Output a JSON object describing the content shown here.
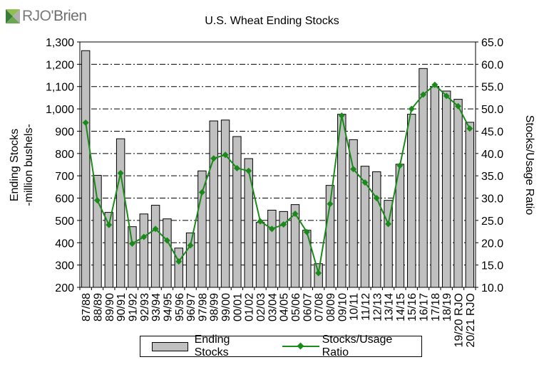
{
  "brand": {
    "logo_text_left": "RJO",
    "logo_text_right": "Brien",
    "logo_colors": [
      "#3a7a3a",
      "#8fbf4f",
      "#b0b0b0"
    ]
  },
  "chart_data": {
    "type": "bar+line",
    "title": "U.S. Wheat Ending Stocks",
    "ylabel_left_line1": "Ending Stocks",
    "ylabel_left_line2": "-million bushels-",
    "ylabel_right": "Stocks/Usage Ratio",
    "ylim_left": [
      200,
      1300
    ],
    "ylim_right": [
      10.0,
      65.0
    ],
    "yticks_left": [
      "200",
      "300",
      "400",
      "500",
      "600",
      "700",
      "800",
      "900",
      "1,000",
      "1,100",
      "1,200",
      "1,300"
    ],
    "yticks_right": [
      "10.0",
      "15.0",
      "20.0",
      "25.0",
      "30.0",
      "35.0",
      "40.0",
      "45.0",
      "50.0",
      "55.0",
      "60.0",
      "65.0"
    ],
    "gridlines": "horizontal dash-dot",
    "categories": [
      "87/88",
      "88/89",
      "89/90",
      "90/91",
      "91/92",
      "92/93",
      "93/94",
      "94/95",
      "95/96",
      "96/97",
      "97/98",
      "98/99",
      "99/00",
      "00/01",
      "01/02",
      "02/03",
      "03/04",
      "04/05",
      "05/06",
      "06/07",
      "07/08",
      "08/09",
      "09/10",
      "10/11",
      "11/12",
      "12/13",
      "13/14",
      "14/15",
      "15/16",
      "16/17",
      "17/18",
      "18/19",
      "19/20 RJO",
      "20/21 RJO"
    ],
    "series": [
      {
        "name": "Ending Stocks",
        "kind": "bar",
        "axis": "left",
        "color": "#c0c0c0",
        "values": [
          1261,
          702,
          536,
          866,
          472,
          529,
          568,
          507,
          376,
          444,
          722,
          946,
          950,
          876,
          777,
          491,
          546,
          540,
          571,
          456,
          306,
          657,
          976,
          862,
          743,
          718,
          590,
          752,
          976,
          1181,
          1100,
          1080,
          1043,
          940
        ]
      },
      {
        "name": "Stocks/Usage Ratio",
        "kind": "line",
        "axis": "right",
        "color": "#1a8a1a",
        "values": [
          46.9,
          29.5,
          24.0,
          35.6,
          19.8,
          21.3,
          23.1,
          20.5,
          15.8,
          19.4,
          31.3,
          38.9,
          39.7,
          36.7,
          36.1,
          24.8,
          23.1,
          24.1,
          26.5,
          22.4,
          13.2,
          28.7,
          48.5,
          36.5,
          33.5,
          30.0,
          24.2,
          37.3,
          50.0,
          53.2,
          55.4,
          52.9,
          50.6,
          45.6
        ]
      }
    ],
    "legend": {
      "position": "bottom",
      "items": [
        "Ending Stocks",
        "Stocks/Usage Ratio"
      ]
    }
  }
}
